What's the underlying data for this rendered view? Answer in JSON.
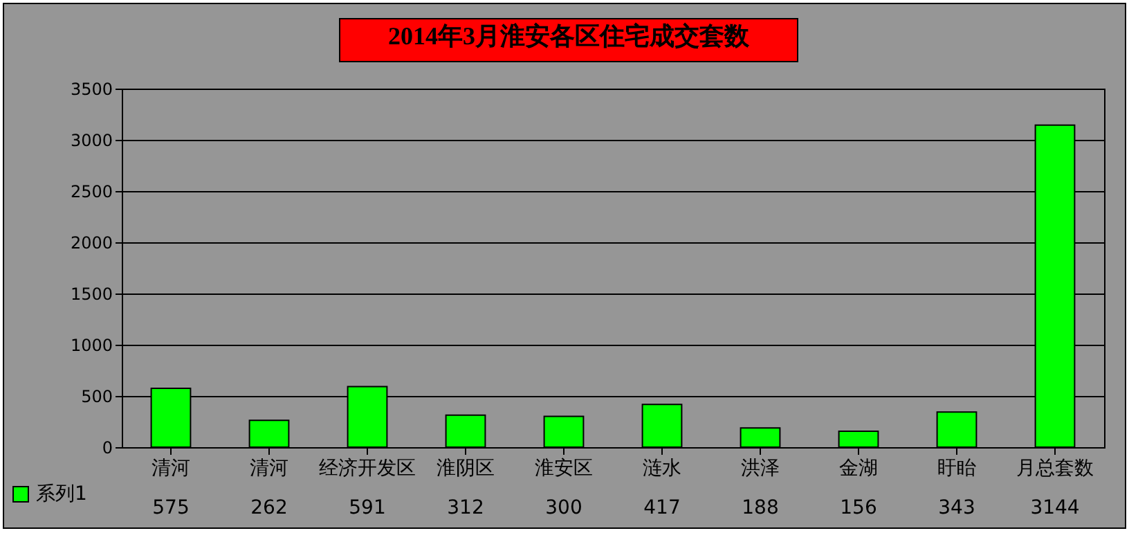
{
  "chart_data": {
    "type": "bar",
    "title": "2014年3月淮安各区住宅成交套数",
    "categories": [
      "清河",
      "清河",
      "经济开发区",
      "淮阴区",
      "淮安区",
      "涟水",
      "洪泽",
      "金湖",
      "盱眙",
      "月总套数"
    ],
    "series": [
      {
        "name": "系列1",
        "color": "#00ff00",
        "values": [
          575,
          262,
          591,
          312,
          300,
          417,
          188,
          156,
          343,
          3144
        ]
      }
    ],
    "ylim": [
      0,
      3500
    ],
    "yticks": [
      0,
      500,
      1000,
      1500,
      2000,
      2500,
      3000,
      3500
    ],
    "grid": "y",
    "data_labels": true,
    "legend": "bottom left"
  }
}
